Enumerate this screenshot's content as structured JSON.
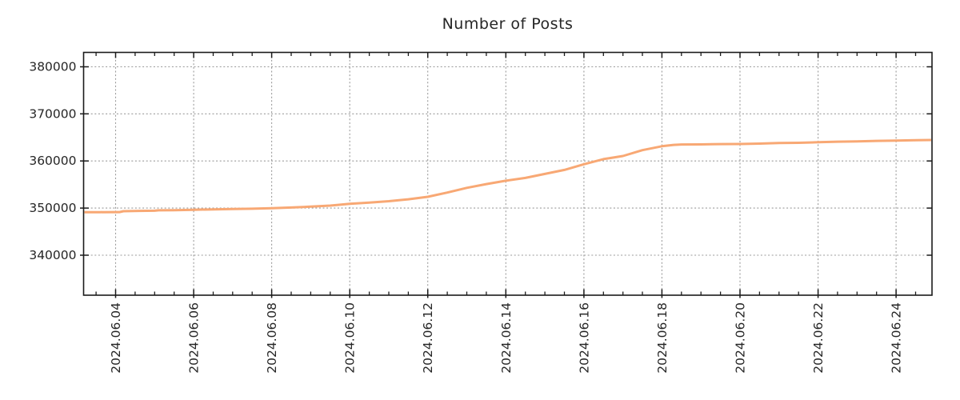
{
  "chart_data": {
    "type": "line",
    "title": "Number of Posts",
    "xlabel": "",
    "ylabel": "",
    "legend": "none",
    "grid": true,
    "grid_style": "dotted",
    "x_unit": "date (June 2024, decimal day)",
    "xlim_days": [
      3.18,
      24.92
    ],
    "ylim": [
      331500,
      383050
    ],
    "x_ticks": [
      {
        "day": 4,
        "label": "2024.06.04"
      },
      {
        "day": 6,
        "label": "2024.06.06"
      },
      {
        "day": 8,
        "label": "2024.06.08"
      },
      {
        "day": 10,
        "label": "2024.06.10"
      },
      {
        "day": 12,
        "label": "2024.06.12"
      },
      {
        "day": 14,
        "label": "2024.06.14"
      },
      {
        "day": 16,
        "label": "2024.06.16"
      },
      {
        "day": 18,
        "label": "2024.06.18"
      },
      {
        "day": 20,
        "label": "2024.06.20"
      },
      {
        "day": 22,
        "label": "2024.06.22"
      },
      {
        "day": 24,
        "label": "2024.06.24"
      }
    ],
    "x_minor_tick_step_days": 0.5,
    "y_ticks": [
      {
        "value": 340000,
        "label": "340000"
      },
      {
        "value": 350000,
        "label": "350000"
      },
      {
        "value": 360000,
        "label": "360000"
      },
      {
        "value": 370000,
        "label": "370000"
      },
      {
        "value": 380000,
        "label": "380000"
      }
    ],
    "series": [
      {
        "name": "number-of-posts",
        "color": "#F8A874",
        "line_width": 3,
        "x_days": [
          3.2,
          3.6,
          4.0,
          4.1,
          4.2,
          4.6,
          5.0,
          5.1,
          5.5,
          6.0,
          6.5,
          7.0,
          7.5,
          8.0,
          8.5,
          9.0,
          9.5,
          10.0,
          10.5,
          11.0,
          11.5,
          12.0,
          12.5,
          13.0,
          13.5,
          14.0,
          14.5,
          15.0,
          15.5,
          16.0,
          16.5,
          17.0,
          17.5,
          18.0,
          18.3,
          18.5,
          19.0,
          19.5,
          20.0,
          20.5,
          21.0,
          21.5,
          22.0,
          22.5,
          23.0,
          23.5,
          24.0,
          24.5,
          24.9
        ],
        "y_values": [
          349120,
          349130,
          349140,
          349150,
          349340,
          349400,
          349430,
          349520,
          349560,
          349640,
          349720,
          349790,
          349860,
          349960,
          350110,
          350300,
          350520,
          350900,
          351170,
          351450,
          351860,
          352400,
          353300,
          354300,
          355100,
          355800,
          356400,
          357250,
          358100,
          359300,
          360400,
          361050,
          362300,
          363130,
          363420,
          363500,
          363520,
          363580,
          363600,
          363680,
          363800,
          363860,
          363970,
          364090,
          364150,
          364260,
          364340,
          364400,
          364450
        ]
      }
    ],
    "colors": {
      "line": "#F8A874",
      "grid": "#9a9a9a",
      "axis": "#1a1a1a",
      "tick_text": "#262626",
      "background": "#ffffff"
    }
  }
}
